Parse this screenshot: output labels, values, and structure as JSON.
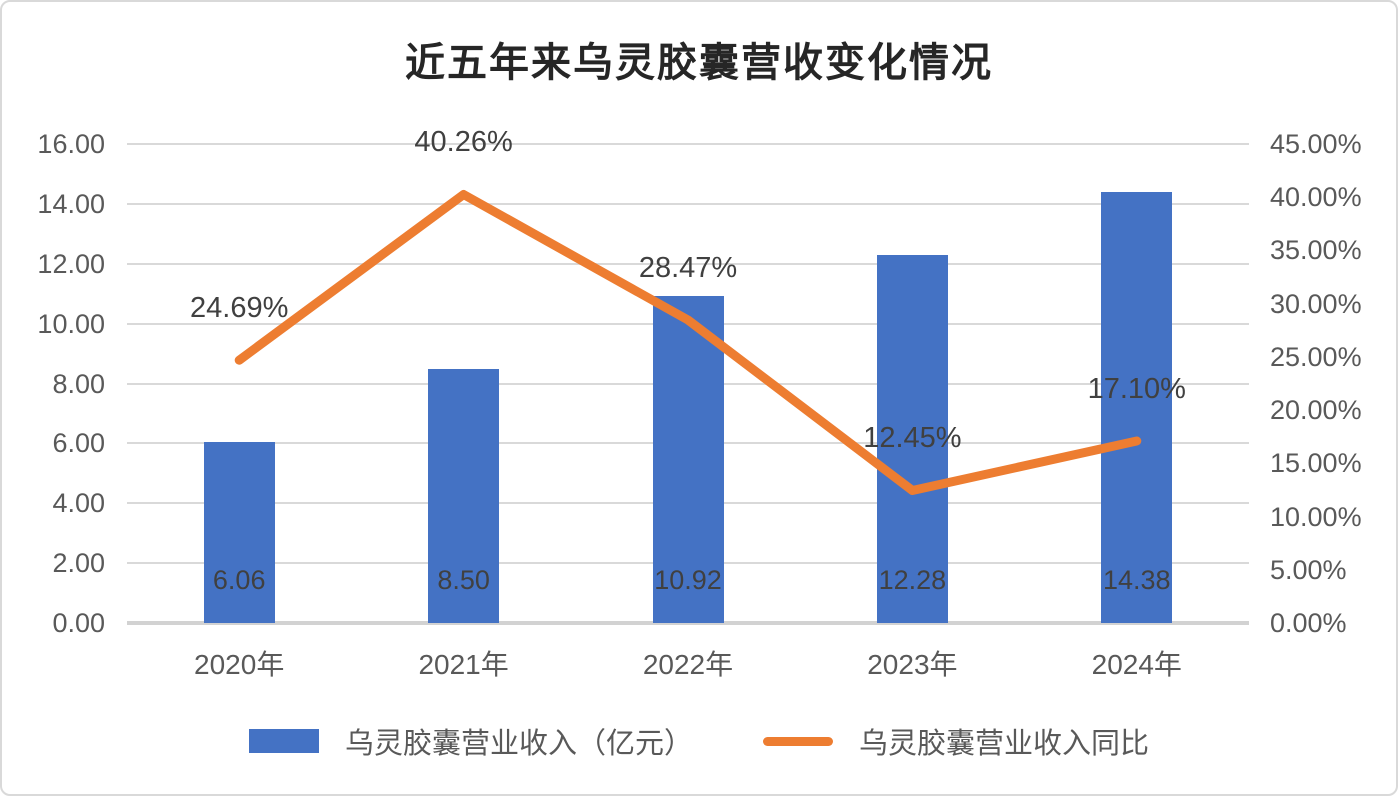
{
  "title": "近五年来乌灵胶囊营收变化情况",
  "chart_data": {
    "type": "bar",
    "subtype": "bar-line-combo",
    "title": "近五年来乌灵胶囊营收变化情况",
    "categories": [
      "2020年",
      "2021年",
      "2022年",
      "2023年",
      "2024年"
    ],
    "series": [
      {
        "name": "乌灵胶囊营业收入（亿元）",
        "type": "bar",
        "axis": "left",
        "values": [
          6.06,
          8.5,
          10.92,
          12.28,
          14.38
        ],
        "labels": [
          "6.06",
          "8.50",
          "10.92",
          "12.28",
          "14.38"
        ],
        "color": "#4472c4"
      },
      {
        "name": "乌灵胶囊营业收入同比",
        "type": "line",
        "axis": "right",
        "values": [
          24.69,
          40.26,
          28.47,
          12.45,
          17.1
        ],
        "labels": [
          "24.69%",
          "40.26%",
          "28.47%",
          "12.45%",
          "17.10%"
        ],
        "color": "#ed7d31"
      }
    ],
    "left_axis": {
      "min": 0,
      "max": 16,
      "step": 2,
      "ticks": [
        "0.00",
        "2.00",
        "4.00",
        "6.00",
        "8.00",
        "10.00",
        "12.00",
        "14.00",
        "16.00"
      ]
    },
    "right_axis": {
      "min": 0,
      "max": 45,
      "step": 5,
      "ticks": [
        "0.00%",
        "5.00%",
        "10.00%",
        "15.00%",
        "20.00%",
        "25.00%",
        "30.00%",
        "35.00%",
        "40.00%",
        "45.00%"
      ]
    },
    "grid": true,
    "legend_position": "bottom",
    "xlabel": "",
    "ylabel_left": "",
    "ylabel_right": ""
  },
  "colors": {
    "bar": "#4472c4",
    "line": "#ed7d31",
    "gridline": "#d9d9d9",
    "axis_text": "#595959",
    "label_text": "#404040",
    "title_text": "#262626"
  }
}
